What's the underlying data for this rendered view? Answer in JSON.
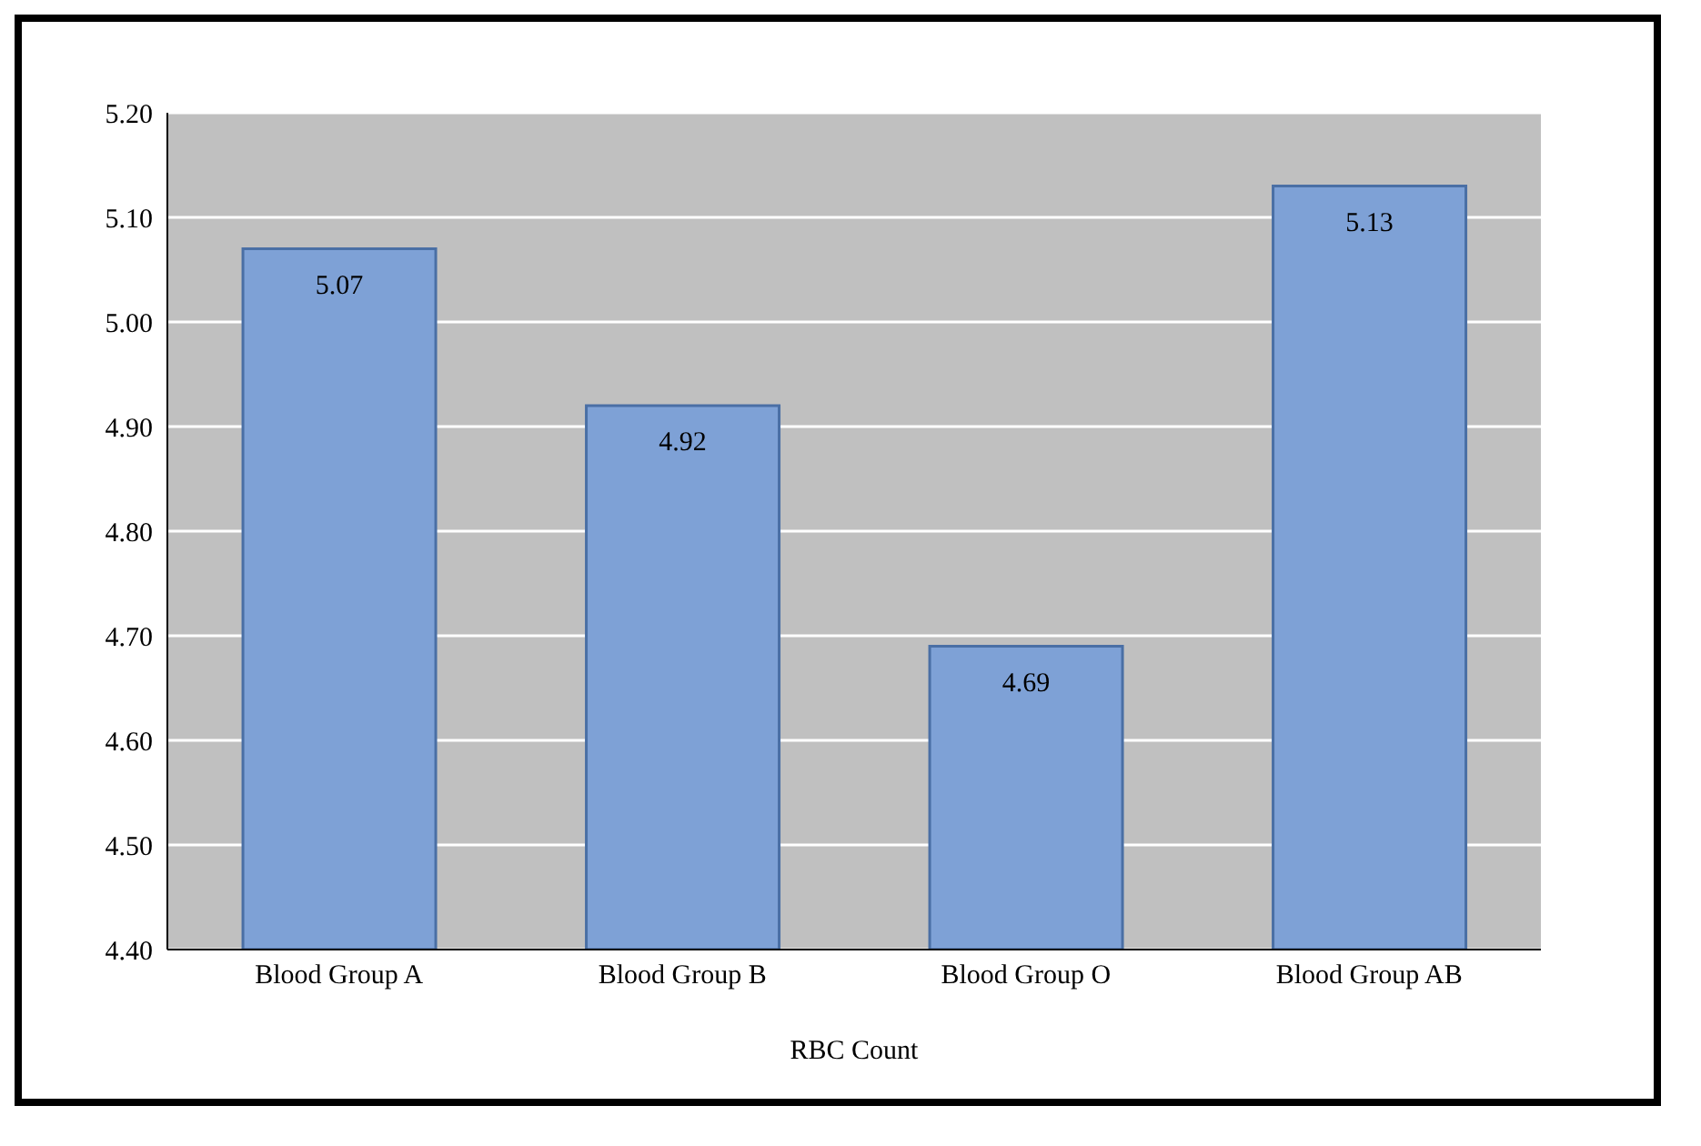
{
  "chart_data": {
    "type": "bar",
    "xlabel": "RBC Count",
    "categories": [
      "Blood Group A",
      "Blood Group B",
      "Blood Group O",
      "Blood Group AB"
    ],
    "values": [
      5.07,
      4.92,
      4.69,
      5.13
    ],
    "color": "#7ea1d6",
    "ylim": [
      4.4,
      5.2
    ],
    "yticks": [
      {
        "value": 4.4,
        "label": "4.40"
      },
      {
        "value": 4.5,
        "label": "4.50"
      },
      {
        "value": 4.6,
        "label": "4.60"
      },
      {
        "value": 4.7,
        "label": "4.70"
      },
      {
        "value": 4.8,
        "label": "4.80"
      },
      {
        "value": 4.9,
        "label": "4.90"
      },
      {
        "value": 5.0,
        "label": "5.00"
      },
      {
        "value": 5.1,
        "label": "5.10"
      },
      {
        "value": 5.2,
        "label": "5.20"
      }
    ],
    "grid": "y",
    "data_labels": true
  }
}
